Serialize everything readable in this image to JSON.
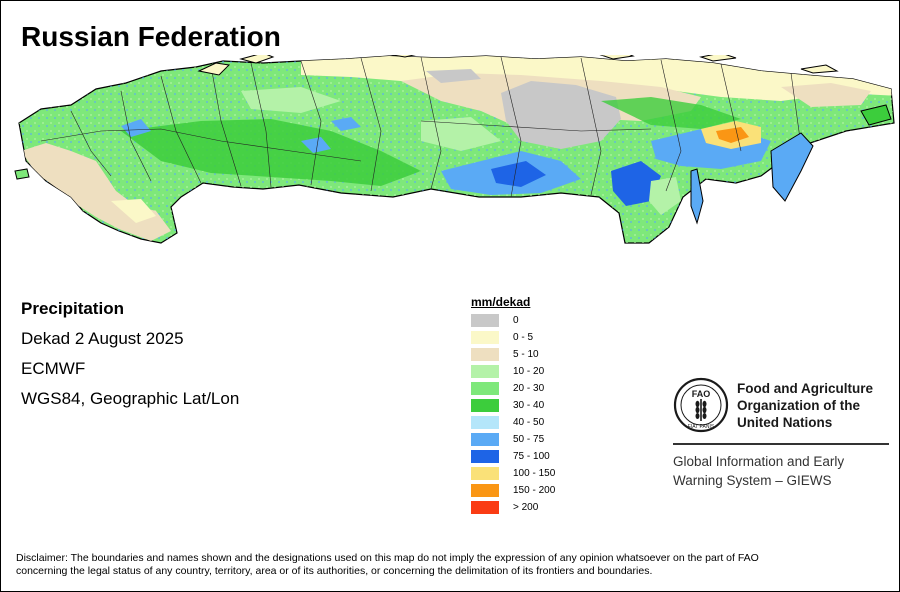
{
  "title": "Russian Federation",
  "info": {
    "variable": "Precipitation",
    "period": "Dekad 2 August 2025",
    "source": "ECMWF",
    "projection": "WGS84, Geographic Lat/Lon"
  },
  "legend": {
    "title": "mm/dekad",
    "classes": [
      {
        "label": "0",
        "color": "#c8c8c8"
      },
      {
        "label": "0 - 5",
        "color": "#fbf8c8"
      },
      {
        "label": "5 - 10",
        "color": "#eedfc0"
      },
      {
        "label": "10 - 20",
        "color": "#b4f2a8"
      },
      {
        "label": "20 - 30",
        "color": "#7ee87a"
      },
      {
        "label": "30 - 40",
        "color": "#3ccd3c"
      },
      {
        "label": "40 - 50",
        "color": "#b4e6fa"
      },
      {
        "label": "50 - 75",
        "color": "#5aaaf5"
      },
      {
        "label": "75 - 100",
        "color": "#1e64e6"
      },
      {
        "label": "100 - 150",
        "color": "#fae178"
      },
      {
        "label": "150 - 200",
        "color": "#fa9614"
      },
      {
        "label": "> 200",
        "color": "#fa3c14"
      }
    ]
  },
  "organization": {
    "logo_text": "FAO",
    "logo_motto": "FIAT PANIS",
    "name_line1": "Food and Agriculture",
    "name_line2": "Organization of the",
    "name_line3": "United Nations",
    "giews_line1": "Global Information and Early",
    "giews_line2": "Warning System – GIEWS"
  },
  "disclaimer_line1": "Disclaimer: The boundaries and names shown and the designations used on this map do not imply the expression of any opinion whatsoever on the part of FAO",
  "disclaimer_line2": "concerning the legal status of any country, territory, area or of its authorities, or concerning the delimitation of its frontiers and boundaries."
}
